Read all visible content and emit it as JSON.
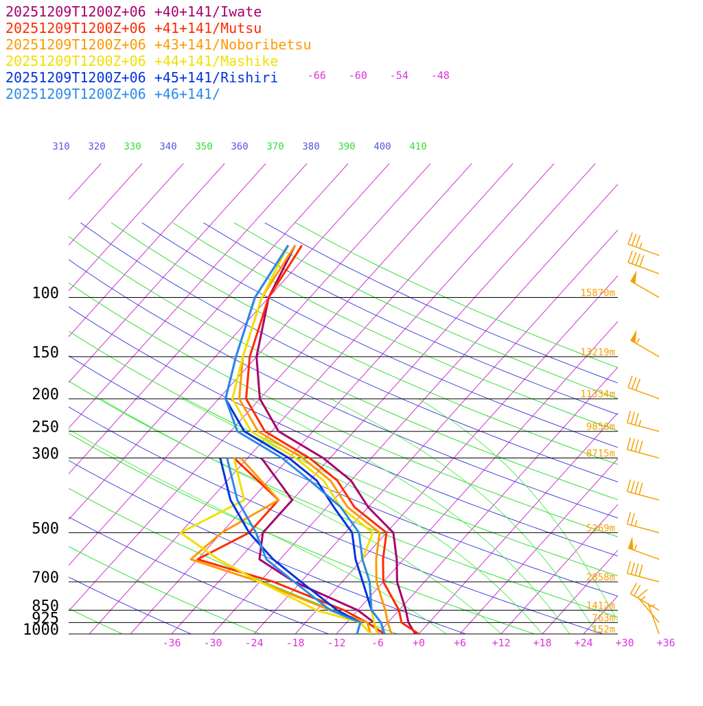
{
  "legend": [
    {
      "label": "20251209T1200Z+06 +40+141/Iwate",
      "color": "#a8006c"
    },
    {
      "label": "20251209T1200Z+06 +41+141/Mutsu",
      "color": "#ff2a00"
    },
    {
      "label": "20251209T1200Z+06 +43+141/Noboribetsu",
      "color": "#ff9900"
    },
    {
      "label": "20251209T1200Z+06 +44+141/Mashike",
      "color": "#f0e000"
    },
    {
      "label": "20251209T1200Z+06 +45+141/Rishiri",
      "color": "#0033dd"
    },
    {
      "label": "20251209T1200Z+06 +46+141/",
      "color": "#2b8ae6"
    }
  ],
  "chart_data": {
    "type": "line",
    "chart_kind": "skew-T log-p sounding",
    "y_axis": {
      "scale": "log",
      "unit": "hPa",
      "ylim": [
        1000,
        50
      ],
      "ticks": [
        "100",
        "150",
        "200",
        "250",
        "300",
        "500",
        "700",
        "850",
        "925",
        "1000"
      ]
    },
    "x_axis": {
      "unit": "°C",
      "skewed": true,
      "ticks": [
        "-36",
        "-30",
        "-24",
        "-18",
        "-12",
        "-6",
        "+0",
        "+6",
        "+12",
        "+18",
        "+24",
        "+30",
        "+36"
      ]
    },
    "isotherm_labels_top": [
      "-66",
      "-60",
      "-54",
      "-48"
    ],
    "theta_labels": [
      {
        "text": "310",
        "color": "#5555dd"
      },
      {
        "text": "320",
        "color": "#5555dd"
      },
      {
        "text": "330",
        "color": "#33dd33"
      },
      {
        "text": "340",
        "color": "#5555dd"
      },
      {
        "text": "350",
        "color": "#33dd33"
      },
      {
        "text": "360",
        "color": "#5555dd"
      },
      {
        "text": "370",
        "color": "#33dd33"
      },
      {
        "text": "380",
        "color": "#5555dd"
      },
      {
        "text": "390",
        "color": "#33dd33"
      },
      {
        "text": "400",
        "color": "#5555dd"
      },
      {
        "text": "410",
        "color": "#33dd33"
      }
    ],
    "height_labels": [
      {
        "p": 100,
        "text": "15870m"
      },
      {
        "p": 150,
        "text": "13219m"
      },
      {
        "p": 200,
        "text": "11334m"
      },
      {
        "p": 250,
        "text": "9856m"
      },
      {
        "p": 300,
        "text": "8715m"
      },
      {
        "p": 500,
        "text": "5269m"
      },
      {
        "p": 700,
        "text": "2858m"
      },
      {
        "p": 850,
        "text": "1412m"
      },
      {
        "p": 925,
        "text": "763m"
      },
      {
        "p": 1000,
        "text": "152m"
      }
    ],
    "series": [
      {
        "name": "20251209T1200Z+06 +40+141/Iwate",
        "color": "#a8006c",
        "temperature": [
          [
            1000,
            -0.5
          ],
          [
            925,
            -3
          ],
          [
            850,
            -5
          ],
          [
            700,
            -10
          ],
          [
            600,
            -13
          ],
          [
            500,
            -17
          ],
          [
            420,
            -24
          ],
          [
            350,
            -30
          ],
          [
            300,
            -37
          ],
          [
            250,
            -47
          ],
          [
            200,
            -54
          ],
          [
            150,
            -60
          ],
          [
            100,
            -66
          ],
          [
            70,
            -69
          ]
        ],
        "dewpoint": [
          [
            1000,
            -6
          ],
          [
            925,
            -8
          ],
          [
            850,
            -12
          ],
          [
            700,
            -25
          ],
          [
            600,
            -33
          ],
          [
            500,
            -36
          ],
          [
            400,
            -36
          ],
          [
            300,
            -46
          ]
        ]
      },
      {
        "name": "20251209T1200Z+06 +41+141/Mutsu",
        "color": "#ff2a00",
        "temperature": [
          [
            1000,
            0
          ],
          [
            925,
            -4
          ],
          [
            850,
            -6
          ],
          [
            700,
            -12
          ],
          [
            600,
            -15
          ],
          [
            500,
            -18
          ],
          [
            420,
            -26
          ],
          [
            350,
            -32
          ],
          [
            300,
            -39
          ],
          [
            250,
            -49
          ],
          [
            200,
            -56
          ],
          [
            150,
            -61
          ],
          [
            100,
            -66
          ],
          [
            70,
            -68
          ]
        ],
        "dewpoint": [
          [
            1000,
            -5
          ],
          [
            925,
            -9
          ],
          [
            850,
            -14
          ],
          [
            700,
            -28
          ],
          [
            600,
            -42
          ],
          [
            500,
            -38
          ],
          [
            400,
            -38
          ],
          [
            300,
            -50
          ]
        ]
      },
      {
        "name": "20251209T1200Z+06 +43+141/Noboribetsu",
        "color": "#ff9900",
        "temperature": [
          [
            1000,
            -4
          ],
          [
            925,
            -6
          ],
          [
            850,
            -8
          ],
          [
            700,
            -13
          ],
          [
            600,
            -16
          ],
          [
            500,
            -19
          ],
          [
            420,
            -27
          ],
          [
            350,
            -33
          ],
          [
            300,
            -40
          ],
          [
            250,
            -50
          ],
          [
            200,
            -57
          ],
          [
            150,
            -62
          ],
          [
            100,
            -67
          ],
          [
            70,
            -69
          ]
        ],
        "dewpoint": [
          [
            1000,
            -7
          ],
          [
            925,
            -9
          ],
          [
            850,
            -16
          ],
          [
            700,
            -30
          ],
          [
            600,
            -43
          ],
          [
            500,
            -42
          ],
          [
            400,
            -38
          ],
          [
            300,
            -49
          ]
        ]
      },
      {
        "name": "20251209T1200Z+06 +44+141/Mashike",
        "color": "#f0e000",
        "temperature": [
          [
            1000,
            -6
          ],
          [
            925,
            -8
          ],
          [
            850,
            -10
          ],
          [
            700,
            -14
          ],
          [
            600,
            -18
          ],
          [
            500,
            -20
          ],
          [
            420,
            -28
          ],
          [
            350,
            -34
          ],
          [
            300,
            -41
          ],
          [
            250,
            -51
          ],
          [
            200,
            -58
          ],
          [
            150,
            -62
          ],
          [
            100,
            -67
          ],
          [
            70,
            -70
          ]
        ],
        "dewpoint": [
          [
            1000,
            -7
          ],
          [
            925,
            -10
          ],
          [
            850,
            -18
          ],
          [
            700,
            -30
          ],
          [
            600,
            -39
          ],
          [
            500,
            -48
          ],
          [
            400,
            -43
          ],
          [
            300,
            -50
          ]
        ]
      },
      {
        "name": "20251209T1200Z+06 +45+141/Rishiri",
        "color": "#0033dd",
        "temperature": [
          [
            1000,
            -5
          ],
          [
            925,
            -7
          ],
          [
            850,
            -10
          ],
          [
            700,
            -15
          ],
          [
            600,
            -19
          ],
          [
            500,
            -23
          ],
          [
            420,
            -29
          ],
          [
            350,
            -35
          ],
          [
            300,
            -42
          ],
          [
            250,
            -52
          ],
          [
            200,
            -59
          ],
          [
            150,
            -63
          ],
          [
            100,
            -68
          ],
          [
            70,
            -70
          ]
        ],
        "dewpoint": [
          [
            1000,
            -9
          ],
          [
            925,
            -10
          ],
          [
            850,
            -15
          ],
          [
            700,
            -24
          ],
          [
            600,
            -31
          ],
          [
            500,
            -38
          ],
          [
            400,
            -45
          ],
          [
            300,
            -52
          ]
        ]
      },
      {
        "name": "20251209T1200Z+06 +46+141/",
        "color": "#2b8ae6",
        "temperature": [
          [
            1000,
            -5
          ],
          [
            925,
            -7
          ],
          [
            850,
            -10
          ],
          [
            700,
            -14
          ],
          [
            600,
            -18
          ],
          [
            500,
            -22
          ],
          [
            420,
            -28
          ],
          [
            350,
            -36
          ],
          [
            300,
            -43
          ],
          [
            250,
            -53
          ],
          [
            200,
            -59
          ],
          [
            150,
            -63
          ],
          [
            100,
            -68
          ],
          [
            70,
            -70
          ]
        ],
        "dewpoint": [
          [
            1000,
            -9
          ],
          [
            925,
            -10
          ],
          [
            850,
            -16
          ],
          [
            700,
            -25
          ],
          [
            600,
            -32
          ],
          [
            500,
            -37
          ],
          [
            400,
            -44
          ],
          [
            300,
            -51
          ]
        ]
      }
    ],
    "wind_barbs": [
      {
        "p": 75,
        "speed_kt": 35,
        "dir": 290
      },
      {
        "p": 85,
        "speed_kt": 40,
        "dir": 290
      },
      {
        "p": 100,
        "speed_kt": 50,
        "dir": 300
      },
      {
        "p": 150,
        "speed_kt": 55,
        "dir": 300
      },
      {
        "p": 200,
        "speed_kt": 30,
        "dir": 290
      },
      {
        "p": 250,
        "speed_kt": 35,
        "dir": 285
      },
      {
        "p": 300,
        "speed_kt": 40,
        "dir": 285
      },
      {
        "p": 400,
        "speed_kt": 40,
        "dir": 285
      },
      {
        "p": 500,
        "speed_kt": 25,
        "dir": 285
      },
      {
        "p": 600,
        "speed_kt": 55,
        "dir": 290
      },
      {
        "p": 700,
        "speed_kt": 40,
        "dir": 285
      },
      {
        "p": 850,
        "speed_kt": 20,
        "dir": 300
      },
      {
        "p": 925,
        "speed_kt": 15,
        "dir": 320
      },
      {
        "p": 1000,
        "speed_kt": 5,
        "dir": 340
      }
    ],
    "wind_barb_color": "#f5a000",
    "grid": true
  }
}
